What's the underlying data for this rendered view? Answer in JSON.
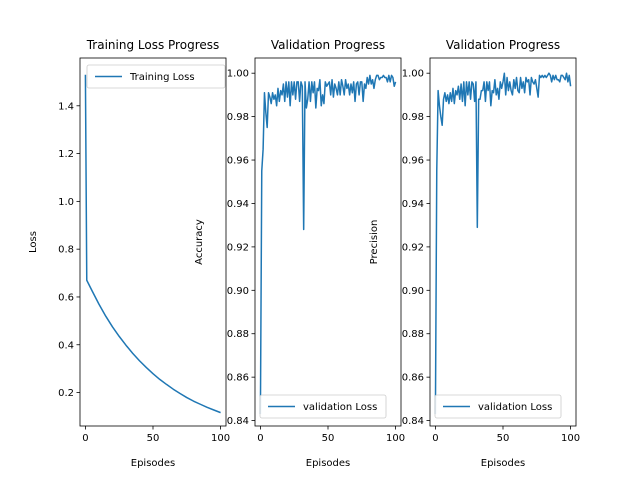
{
  "colors": {
    "series": "#1f77b4"
  },
  "chart_data": [
    {
      "type": "line",
      "title": "Training Loss Progress",
      "xlabel": "Episodes",
      "ylabel": "Loss",
      "xlim": [
        -4,
        104
      ],
      "ylim": [
        0.06,
        1.6
      ],
      "xticks": [
        0,
        50,
        100
      ],
      "yticks": [
        0.2,
        0.4,
        0.6,
        0.8,
        1.0,
        1.2,
        1.4
      ],
      "ytick_labels": [
        "0.2",
        "0.4",
        "0.6",
        "0.8",
        "1.0",
        "1.2",
        "1.4"
      ],
      "legend": "upper right",
      "series": [
        {
          "name": "Training Loss",
          "x": [
            0,
            1,
            5,
            10,
            15,
            20,
            25,
            30,
            35,
            40,
            45,
            50,
            55,
            60,
            65,
            70,
            75,
            80,
            85,
            90,
            95,
            100
          ],
          "y": [
            1.53,
            0.67,
            0.625,
            0.57,
            0.52,
            0.475,
            0.435,
            0.398,
            0.364,
            0.333,
            0.305,
            0.279,
            0.255,
            0.234,
            0.214,
            0.196,
            0.179,
            0.164,
            0.151,
            0.138,
            0.127,
            0.116
          ]
        }
      ]
    },
    {
      "type": "line",
      "title": "Validation Progress",
      "xlabel": "Episodes",
      "ylabel": "Accuracy",
      "xlim": [
        -4,
        104
      ],
      "ylim": [
        0.8375,
        1.007
      ],
      "xticks": [
        0,
        50,
        100
      ],
      "yticks": [
        0.84,
        0.86,
        0.88,
        0.9,
        0.92,
        0.94,
        0.96,
        0.98,
        1.0
      ],
      "ytick_labels": [
        "0.84",
        "0.86",
        "0.88",
        "0.90",
        "0.92",
        "0.94",
        "0.96",
        "0.98",
        "1.00"
      ],
      "legend": "lower right",
      "series": [
        {
          "name": "validation Loss",
          "x": [
            0,
            1,
            2,
            3,
            4,
            5,
            6,
            7,
            8,
            9,
            10,
            11,
            12,
            13,
            14,
            15,
            16,
            17,
            18,
            19,
            20,
            21,
            22,
            23,
            24,
            25,
            26,
            27,
            28,
            29,
            30,
            31,
            32,
            33,
            34,
            35,
            36,
            37,
            38,
            39,
            40,
            41,
            42,
            43,
            44,
            45,
            46,
            47,
            48,
            49,
            50,
            51,
            52,
            53,
            54,
            55,
            56,
            57,
            58,
            59,
            60,
            61,
            62,
            63,
            64,
            65,
            66,
            67,
            68,
            69,
            70,
            71,
            72,
            73,
            74,
            75,
            76,
            77,
            78,
            79,
            80,
            81,
            82,
            83,
            84,
            85,
            86,
            87,
            88,
            89,
            90,
            91,
            92,
            93,
            94,
            95,
            96,
            97,
            98,
            99,
            100
          ],
          "y": [
            0.843,
            0.955,
            0.965,
            0.991,
            0.982,
            0.975,
            0.991,
            0.989,
            0.986,
            0.991,
            0.988,
            0.99,
            0.985,
            0.993,
            0.987,
            0.992,
            0.99,
            0.995,
            0.987,
            0.996,
            0.989,
            0.996,
            0.985,
            0.996,
            0.99,
            0.996,
            0.988,
            0.996,
            0.996,
            0.987,
            0.996,
            0.994,
            0.928,
            0.996,
            0.984,
            0.988,
            0.996,
            0.987,
            0.996,
            0.991,
            0.996,
            0.984,
            0.993,
            0.992,
            0.997,
            0.985,
            0.99,
            0.986,
            0.996,
            0.994,
            0.995,
            0.996,
            0.99,
            0.997,
            0.989,
            0.995,
            0.993,
            0.99,
            0.996,
            0.99,
            0.997,
            0.994,
            0.99,
            0.997,
            0.993,
            0.995,
            0.99,
            0.995,
            0.991,
            0.996,
            0.987,
            0.995,
            0.996,
            0.99,
            0.996,
            0.996,
            0.987,
            0.995,
            0.993,
            0.998,
            0.995,
            0.999,
            0.995,
            0.997,
            0.993,
            0.997,
            0.999,
            0.999,
            0.997,
            0.998,
            0.998,
            0.999,
            0.998,
            0.998,
            0.996,
            0.999,
            0.996,
            0.999,
            0.998,
            0.994,
            0.996
          ]
        }
      ]
    },
    {
      "type": "line",
      "title": "Validation Progress",
      "xlabel": "Episodes",
      "ylabel": "Precision",
      "xlim": [
        -4,
        104
      ],
      "ylim": [
        0.8375,
        1.007
      ],
      "xticks": [
        0,
        50,
        100
      ],
      "yticks": [
        0.84,
        0.86,
        0.88,
        0.9,
        0.92,
        0.94,
        0.96,
        0.98,
        1.0
      ],
      "ytick_labels": [
        "0.84",
        "0.86",
        "0.88",
        "0.90",
        "0.92",
        "0.94",
        "0.96",
        "0.98",
        "1.00"
      ],
      "legend": "lower right",
      "series": [
        {
          "name": "validation Loss",
          "x": [
            0,
            1,
            2,
            3,
            4,
            5,
            6,
            7,
            8,
            9,
            10,
            11,
            12,
            13,
            14,
            15,
            16,
            17,
            18,
            19,
            20,
            21,
            22,
            23,
            24,
            25,
            26,
            27,
            28,
            29,
            30,
            31,
            32,
            33,
            34,
            35,
            36,
            37,
            38,
            39,
            40,
            41,
            42,
            43,
            44,
            45,
            46,
            47,
            48,
            49,
            50,
            51,
            52,
            53,
            54,
            55,
            56,
            57,
            58,
            59,
            60,
            61,
            62,
            63,
            64,
            65,
            66,
            67,
            68,
            69,
            70,
            71,
            72,
            73,
            74,
            75,
            76,
            77,
            78,
            79,
            80,
            81,
            82,
            83,
            84,
            85,
            86,
            87,
            88,
            89,
            90,
            91,
            92,
            93,
            94,
            95,
            96,
            97,
            98,
            99,
            100
          ],
          "y": [
            0.843,
            0.955,
            0.992,
            0.985,
            0.98,
            0.976,
            0.988,
            0.991,
            0.987,
            0.99,
            0.986,
            0.991,
            0.987,
            0.993,
            0.986,
            0.992,
            0.99,
            0.994,
            0.988,
            0.995,
            0.987,
            0.996,
            0.985,
            0.996,
            0.99,
            0.996,
            0.988,
            0.996,
            0.995,
            0.987,
            0.996,
            0.929,
            0.988,
            0.988,
            0.992,
            0.992,
            0.996,
            0.987,
            0.996,
            0.992,
            0.996,
            0.985,
            0.992,
            0.991,
            0.997,
            0.99,
            0.993,
            0.988,
            0.996,
            0.993,
            0.996,
            1.0,
            0.99,
            0.998,
            0.992,
            0.996,
            0.992,
            0.99,
            0.997,
            0.993,
            0.998,
            0.992,
            0.991,
            0.998,
            0.993,
            0.996,
            0.991,
            0.998,
            0.996,
            0.997,
            0.99,
            0.998,
            0.996,
            0.995,
            0.997,
            0.993,
            0.989,
            0.999,
            0.998,
            0.999,
            0.998,
            0.999,
            0.998,
            0.999,
            1.0,
            0.999,
            0.996,
            0.999,
            0.997,
            0.999,
            0.997,
            0.997,
            0.996,
            0.999,
            0.999,
            0.998,
            0.997,
            1.0,
            0.996,
            0.999,
            0.994
          ]
        }
      ]
    }
  ]
}
